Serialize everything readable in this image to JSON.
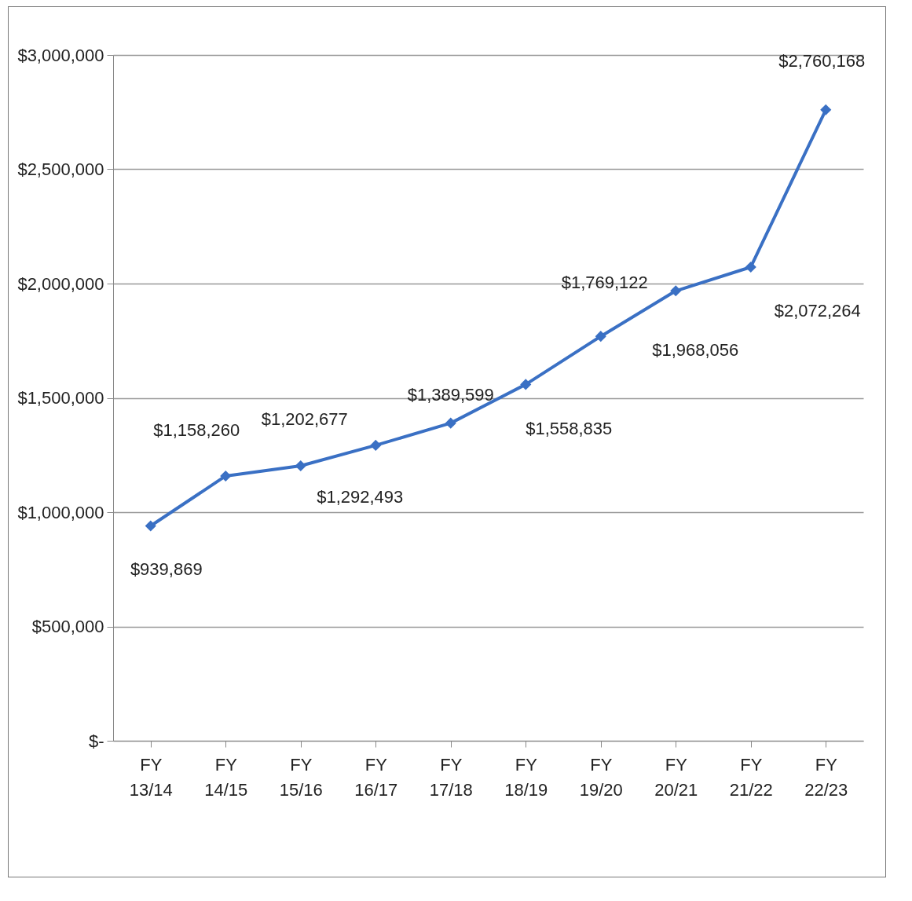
{
  "chart_data": {
    "type": "line",
    "categories": [
      "FY 13/14",
      "FY 14/15",
      "FY 15/16",
      "FY 16/17",
      "FY 17/18",
      "FY 18/19",
      "FY 19/20",
      "FY 20/21",
      "FY 21/22",
      "FY 22/23"
    ],
    "series": [
      {
        "color": "#3a70c4",
        "values": [
          939869,
          1158260,
          1202677,
          1292493,
          1389599,
          1558835,
          1769122,
          1968056,
          2072264,
          2760168
        ],
        "value_labels": [
          "$939,869",
          "$1,158,260",
          "$1,202,677",
          "$1,292,493",
          "$1,389,599",
          "$1,558,835",
          "$1,769,122",
          "$1,968,056",
          "$2,072,264",
          "$2,760,168"
        ]
      }
    ],
    "ylim": [
      0,
      3000000
    ],
    "yticks": [
      {
        "value": 0,
        "label": "$-"
      },
      {
        "value": 500000,
        "label": "$500,000"
      },
      {
        "value": 1000000,
        "label": "$1,000,000"
      },
      {
        "value": 1500000,
        "label": "$1,500,000"
      },
      {
        "value": 2000000,
        "label": "$2,000,000"
      },
      {
        "value": 2500000,
        "label": "$2,500,000"
      },
      {
        "value": 3000000,
        "label": "$3,000,000"
      }
    ],
    "grid": "y",
    "marker": "diamond",
    "line_style": "solid"
  }
}
